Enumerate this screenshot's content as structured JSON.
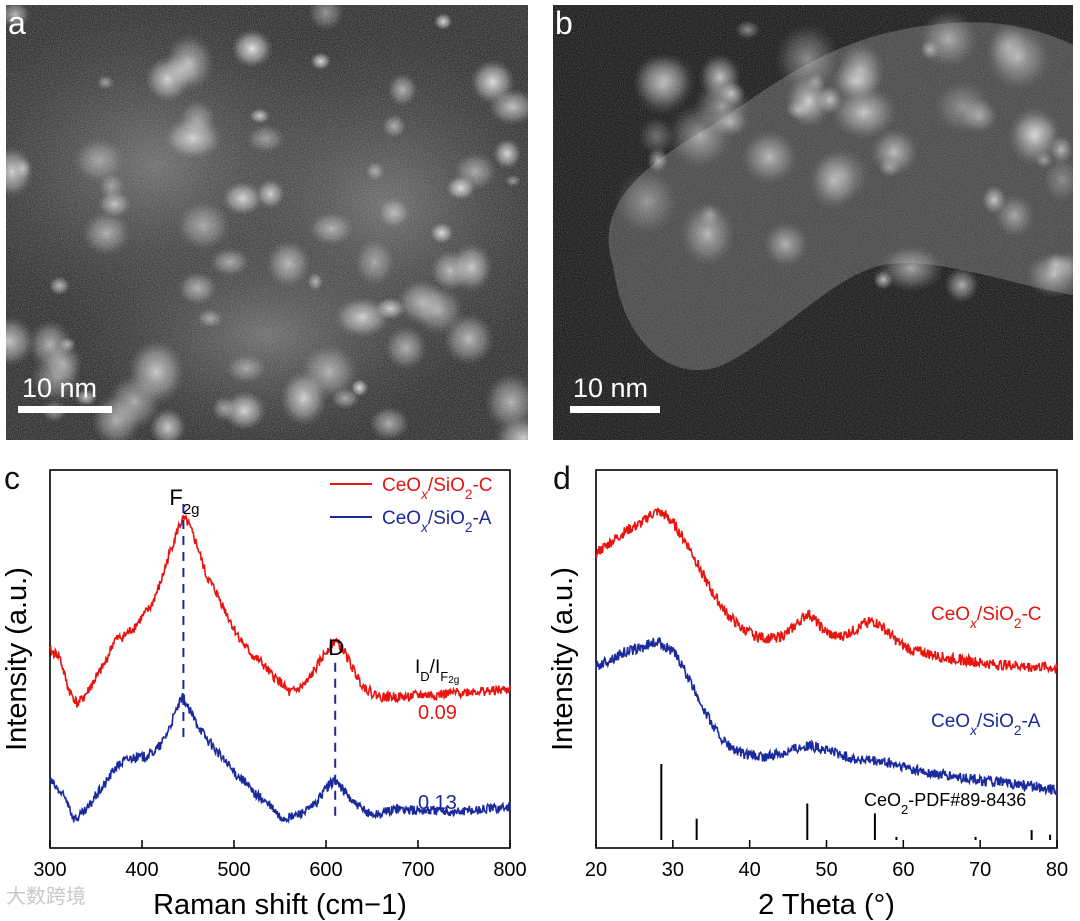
{
  "panels": {
    "a": {
      "label": "a",
      "scale_bar": "10 nm"
    },
    "b": {
      "label": "b",
      "scale_bar": "10 nm"
    },
    "c": {
      "label": "c"
    },
    "d": {
      "label": "d"
    }
  },
  "watermark": "大数跨境",
  "colors": {
    "red": "#e8140f",
    "blue": "#1a2a9c",
    "axis": "#000000"
  },
  "chart_data": [
    {
      "id": "c",
      "type": "line",
      "xlabel": "Raman shift (cm−1)",
      "ylabel": "Intensity (a.u.)",
      "xlim": [
        300,
        800
      ],
      "xticks": [
        300,
        400,
        500,
        600,
        700,
        800
      ],
      "ylim": [
        0,
        100
      ],
      "annotations": {
        "f2g": {
          "base": "F",
          "sub": "2g",
          "x": 445
        },
        "d": {
          "text": "D",
          "x": 610
        },
        "ratio_header": {
          "base": "I",
          "sub1": "D",
          "mid": "/I",
          "sub2": "F",
          "subsub": "2g"
        },
        "ratio_c": "0.09",
        "ratio_a": "0.13"
      },
      "legend": [
        {
          "prefix": "CeO",
          "x": "x",
          "mid": "/SiO",
          "two": "2",
          "suffix": "-C",
          "color": "#e8140f"
        },
        {
          "prefix": "CeO",
          "x": "x",
          "mid": "/SiO",
          "two": "2",
          "suffix": "-A",
          "color": "#1a2a9c"
        }
      ],
      "series": [
        {
          "name": "CeOx/SiO2-C",
          "color": "#e8140f",
          "x": [
            300,
            310,
            320,
            330,
            340,
            350,
            360,
            370,
            380,
            390,
            400,
            410,
            420,
            430,
            440,
            445,
            450,
            460,
            470,
            480,
            490,
            500,
            510,
            520,
            530,
            540,
            550,
            560,
            570,
            580,
            590,
            600,
            610,
            620,
            630,
            640,
            650,
            660,
            670,
            680,
            690,
            700,
            720,
            740,
            760,
            780,
            800
          ],
          "y": [
            52,
            51,
            42,
            38,
            41,
            45,
            49,
            55,
            56,
            58,
            61,
            64,
            70,
            78,
            85,
            87,
            86,
            80,
            72,
            68,
            63,
            58,
            54,
            51,
            49,
            46,
            44,
            41,
            42,
            44,
            48,
            52,
            55,
            52,
            47,
            43,
            41,
            40,
            40,
            40,
            40,
            40.5,
            40.5,
            41,
            41.5,
            41.5,
            42
          ]
        },
        {
          "name": "CeOx/SiO2-A",
          "color": "#1a2a9c",
          "x": [
            300,
            310,
            320,
            325,
            330,
            340,
            350,
            360,
            370,
            380,
            390,
            400,
            410,
            420,
            430,
            440,
            445,
            450,
            460,
            470,
            480,
            490,
            500,
            510,
            520,
            530,
            540,
            550,
            560,
            570,
            580,
            590,
            600,
            610,
            620,
            630,
            640,
            650,
            660,
            670,
            680,
            690,
            700,
            720,
            740,
            760,
            780,
            800
          ],
          "y": [
            18,
            15,
            12,
            8,
            8,
            10,
            14,
            17,
            21,
            23,
            24,
            24,
            25,
            27,
            32,
            38,
            40,
            37,
            33,
            29,
            26,
            23,
            20,
            18,
            15,
            13,
            11,
            8,
            8,
            9,
            10,
            12,
            16,
            18,
            15,
            12,
            10,
            9,
            9,
            10,
            10.5,
            10,
            10,
            10,
            9.5,
            10,
            10.5,
            11
          ]
        }
      ]
    },
    {
      "id": "d",
      "type": "line",
      "xlabel": "2 Theta (°)",
      "ylabel": "Intensity (a.u.)",
      "xlim": [
        20,
        80
      ],
      "xticks": [
        20,
        30,
        40,
        50,
        60,
        70,
        80
      ],
      "ylim": [
        0,
        100
      ],
      "labels": [
        {
          "prefix": "CeO",
          "x": "x",
          "mid": "/SiO",
          "two": "2",
          "suffix": "-C",
          "color": "#e8140f"
        },
        {
          "prefix": "CeO",
          "x": "x",
          "mid": "/SiO",
          "two": "2",
          "suffix": "-A",
          "color": "#1a2a9c"
        }
      ],
      "reference": {
        "prefix": "CeO",
        "two": "2",
        "suffix": "-PDF#89-8436",
        "peaks": [
          {
            "x": 28.5,
            "h": 100
          },
          {
            "x": 33.1,
            "h": 28
          },
          {
            "x": 47.5,
            "h": 48
          },
          {
            "x": 56.3,
            "h": 35
          },
          {
            "x": 59.1,
            "h": 4
          },
          {
            "x": 69.4,
            "h": 4
          },
          {
            "x": 76.7,
            "h": 13
          },
          {
            "x": 79.1,
            "h": 7
          }
        ]
      },
      "series": [
        {
          "name": "CeOx/SiO2-C",
          "color": "#e8140f",
          "x": [
            20,
            22,
            24,
            26,
            27,
            28,
            29,
            30,
            31,
            32,
            33,
            34,
            35,
            36,
            37,
            38,
            39,
            40,
            41,
            42,
            43,
            44,
            45,
            46,
            47,
            47.5,
            48,
            49,
            50,
            51,
            52,
            53,
            54,
            55,
            56,
            57,
            58,
            59,
            60,
            61,
            62,
            63,
            64,
            65,
            66,
            67,
            68,
            69,
            70,
            72,
            74,
            76,
            78,
            80
          ],
          "y": [
            78,
            81,
            84,
            86,
            88,
            89,
            88,
            86,
            83,
            80,
            76,
            72,
            68,
            65,
            62,
            60,
            58,
            57,
            56,
            55.5,
            55.5,
            56,
            57,
            59,
            61,
            62,
            61.5,
            59,
            57,
            56,
            56,
            57,
            58,
            59.5,
            60,
            59,
            57,
            55,
            53.5,
            52.5,
            52,
            51.5,
            51,
            50.5,
            50,
            50,
            49.5,
            49.5,
            49,
            48.5,
            48.5,
            48,
            48,
            47.5
          ]
        },
        {
          "name": "CeOx/SiO2-A",
          "color": "#1a2a9c",
          "x": [
            20,
            22,
            24,
            26,
            27,
            28,
            29,
            30,
            31,
            32,
            33,
            34,
            35,
            36,
            37,
            38,
            39,
            40,
            42,
            44,
            46,
            47,
            48,
            50,
            52,
            54,
            56,
            58,
            60,
            62,
            64,
            66,
            68,
            70,
            72,
            74,
            76,
            78,
            80
          ],
          "y": [
            48,
            50,
            52,
            53,
            54,
            54.5,
            53.5,
            52,
            49,
            45,
            41,
            37,
            33,
            30,
            27.5,
            26,
            25,
            24.5,
            24,
            25,
            26.5,
            27,
            27,
            26,
            24.5,
            23.5,
            23,
            22.5,
            21.5,
            20.5,
            19.5,
            19,
            18.5,
            18,
            17.5,
            17,
            16.5,
            16,
            15.5
          ]
        }
      ]
    }
  ]
}
